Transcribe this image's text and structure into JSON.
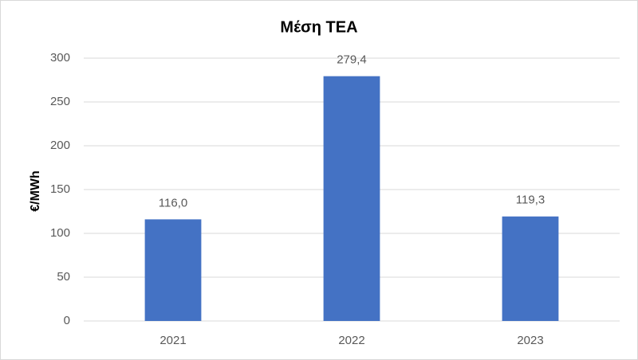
{
  "chart_data": {
    "type": "bar",
    "title": "Μέση ΤΕΑ",
    "y_label": "€/MWh",
    "categories": [
      "2021",
      "2022",
      "2023"
    ],
    "values": [
      116.0,
      279.4,
      119.3
    ],
    "value_labels": [
      "116,0",
      "279,4",
      "119,3"
    ],
    "color": "#4472c4",
    "ylim": [
      0,
      300
    ],
    "yticks": [
      0,
      50,
      100,
      150,
      200,
      250,
      300
    ],
    "grid": true
  }
}
